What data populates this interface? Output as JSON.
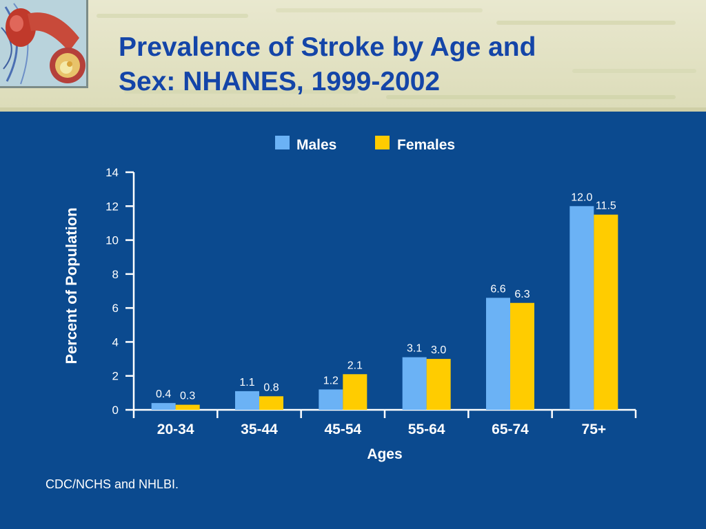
{
  "slide": {
    "title_line1": "Prevalence of Stroke by Age and",
    "title_line2": "Sex: NHANES, 1999-2002",
    "source": "CDC/NCHS and NHLBI."
  },
  "colors": {
    "background": "#0b4a8f",
    "title": "#1445a8",
    "males": "#6bb2f5",
    "females": "#ffcc00",
    "text": "#ffffff"
  },
  "chart_data": {
    "type": "bar",
    "title": "",
    "xlabel": "Ages",
    "ylabel": "Percent of Population",
    "ylim": [
      0,
      14
    ],
    "yticks": [
      "0",
      "2",
      "4",
      "6",
      "8",
      "10",
      "12",
      "14"
    ],
    "categories": [
      "20-34",
      "35-44",
      "45-54",
      "55-64",
      "65-74",
      "75+"
    ],
    "series": [
      {
        "name": "Males",
        "values": [
          0.4,
          1.1,
          1.2,
          3.1,
          6.6,
          12.0
        ],
        "labels": [
          "0.4",
          "1.1",
          "1.2",
          "3.1",
          "6.6",
          "12.0"
        ]
      },
      {
        "name": "Females",
        "values": [
          0.3,
          0.8,
          2.1,
          3.0,
          6.3,
          11.5
        ],
        "labels": [
          "0.3",
          "0.8",
          "2.1",
          "3.0",
          "6.3",
          "11.5"
        ]
      }
    ],
    "legend_position": "top-center",
    "grid": false
  }
}
